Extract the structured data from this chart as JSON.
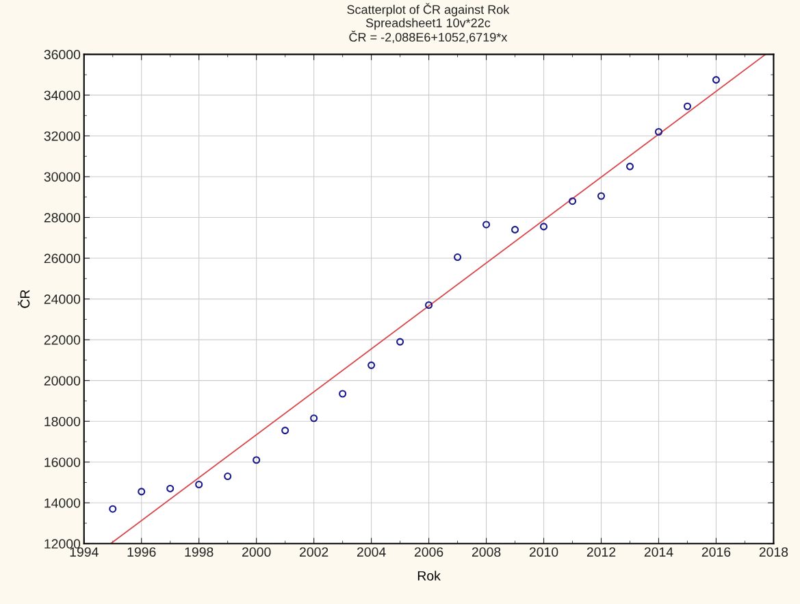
{
  "chart_data": {
    "type": "scatter",
    "title": "Scatterplot of ČR against Rok",
    "subtitle": "Spreadsheet1 10v*22c\nČR = -2,088E6+1052,6719*x",
    "xlabel": "Rok",
    "ylabel": "ČR",
    "x": [
      1995,
      1996,
      1997,
      1998,
      1999,
      2000,
      2001,
      2002,
      2003,
      2004,
      2005,
      2006,
      2007,
      2008,
      2009,
      2010,
      2011,
      2012,
      2013,
      2014,
      2015,
      2016
    ],
    "series": [
      {
        "color": "#1a1a8c",
        "marker": "circle",
        "values": [
          13700,
          14550,
          14700,
          14900,
          15300,
          16100,
          17550,
          18150,
          19350,
          20750,
          21900,
          23700,
          26050,
          27650,
          27400,
          27550,
          28800,
          29050,
          30500,
          32200,
          33450,
          34750
        ]
      },
      {
        "type": "line",
        "color": "#d9474b",
        "marker": "none",
        "line_style": "solid",
        "x": [
          1994.93,
          2017.72
        ],
        "values": [
          12000,
          36000
        ]
      }
    ],
    "xlim": [
      1994,
      2018
    ],
    "xticks": [
      1994,
      1996,
      1998,
      2000,
      2002,
      2004,
      2006,
      2008,
      2010,
      2012,
      2014,
      2016,
      2018
    ],
    "ylim": [
      12000,
      36000
    ],
    "yticks": [
      12000,
      14000,
      16000,
      18000,
      20000,
      22000,
      24000,
      26000,
      28000,
      30000,
      32000,
      34000,
      36000
    ],
    "grid": true,
    "legend": false
  }
}
